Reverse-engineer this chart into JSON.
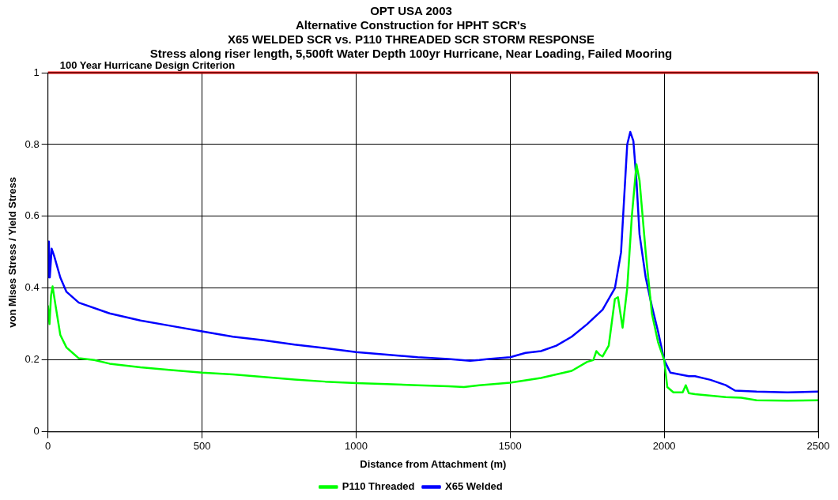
{
  "chart_data": {
    "type": "line",
    "title": "OPT USA 2003\nAlternative Construction for HPHT SCR's\nX65 WELDED SCR vs. P110 THREADED SCR STORM RESPONSE\nStress along riser length, 5,500ft Water Depth 100yr Hurricane, Near Loading, Failed Mooring",
    "xlabel": "Distance from Attachment (m)",
    "ylabel": "von Mises Stress / Yield Stress",
    "xlim": [
      0,
      2500
    ],
    "xticks": [
      0,
      500,
      1000,
      1500,
      2000,
      2500
    ],
    "ylim": [
      0,
      1
    ],
    "yticks": [
      0,
      0.2,
      0.4,
      0.6,
      0.8,
      1
    ],
    "grid": true,
    "legend": "bottom",
    "marker": "none",
    "line_style": "solid",
    "ref_lines": [
      {
        "axis": "y",
        "value": 1,
        "label": "100 Year Hurricane Design Criterion",
        "color": "#ff0000"
      }
    ],
    "series": [
      {
        "name": "P110 Threaded",
        "color": "#00ff00",
        "x": [
          0,
          5,
          10,
          15,
          25,
          40,
          60,
          80,
          100,
          150,
          200,
          300,
          400,
          500,
          600,
          700,
          800,
          900,
          1000,
          1100,
          1200,
          1300,
          1350,
          1400,
          1500,
          1600,
          1700,
          1750,
          1770,
          1780,
          1790,
          1800,
          1820,
          1840,
          1850,
          1865,
          1880,
          1895,
          1910,
          1920,
          1940,
          1960,
          1980,
          2000,
          2010,
          2030,
          2060,
          2070,
          2080,
          2100,
          2200,
          2250,
          2300,
          2400,
          2500
        ],
        "values": [
          0.35,
          0.3,
          0.38,
          0.405,
          0.35,
          0.27,
          0.235,
          0.22,
          0.205,
          0.2,
          0.19,
          0.18,
          0.172,
          0.165,
          0.16,
          0.153,
          0.146,
          0.14,
          0.136,
          0.133,
          0.13,
          0.127,
          0.125,
          0.13,
          0.137,
          0.15,
          0.17,
          0.195,
          0.2,
          0.225,
          0.215,
          0.21,
          0.24,
          0.37,
          0.375,
          0.29,
          0.4,
          0.6,
          0.745,
          0.7,
          0.5,
          0.33,
          0.25,
          0.2,
          0.125,
          0.11,
          0.11,
          0.13,
          0.108,
          0.105,
          0.097,
          0.095,
          0.088,
          0.087,
          0.088
        ]
      },
      {
        "name": "X65 Welded",
        "color": "#0000ff",
        "x": [
          0,
          3,
          6,
          12,
          20,
          40,
          60,
          100,
          200,
          300,
          400,
          500,
          600,
          700,
          800,
          900,
          1000,
          1100,
          1200,
          1300,
          1370,
          1400,
          1430,
          1500,
          1550,
          1600,
          1650,
          1700,
          1750,
          1800,
          1840,
          1860,
          1870,
          1880,
          1890,
          1900,
          1910,
          1920,
          1940,
          1960,
          1980,
          2000,
          2020,
          2050,
          2080,
          2100,
          2150,
          2200,
          2230,
          2300,
          2400,
          2500
        ],
        "values": [
          0.43,
          0.53,
          0.43,
          0.51,
          0.49,
          0.43,
          0.39,
          0.36,
          0.33,
          0.31,
          0.295,
          0.28,
          0.265,
          0.255,
          0.243,
          0.233,
          0.222,
          0.215,
          0.208,
          0.203,
          0.198,
          0.2,
          0.203,
          0.208,
          0.22,
          0.225,
          0.24,
          0.265,
          0.3,
          0.34,
          0.4,
          0.5,
          0.65,
          0.8,
          0.835,
          0.81,
          0.7,
          0.55,
          0.43,
          0.35,
          0.28,
          0.2,
          0.165,
          0.16,
          0.155,
          0.155,
          0.145,
          0.13,
          0.115,
          0.112,
          0.11,
          0.112
        ]
      }
    ]
  }
}
